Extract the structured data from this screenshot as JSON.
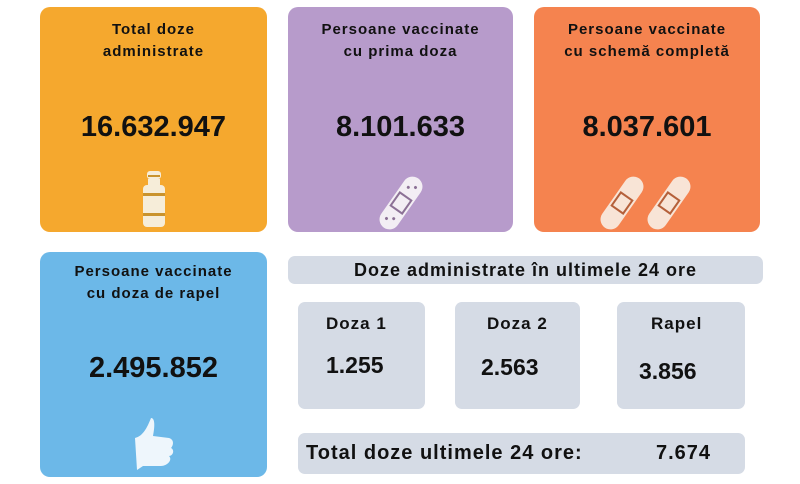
{
  "cards": [
    {
      "title_l1": "Total doze",
      "title_l2": "administrate",
      "value": "16.632.947",
      "icon": "vaccine-vial-icon",
      "color": "#F5A82E"
    },
    {
      "title_l1": "Persoane vaccinate",
      "title_l2": "cu prima doza",
      "value": "8.101.633",
      "icon": "bandage-icon",
      "color": "#B79BCB"
    },
    {
      "title_l1": "Persoane vaccinate",
      "title_l2": "cu schemă completă",
      "value": "8.037.601",
      "icon": "two-bandages-icon",
      "color": "#F5834F"
    },
    {
      "title_l1": "Persoane  vaccinate",
      "title_l2": "cu doza de rapel",
      "value": "2.495.852",
      "icon": "thumbs-up-icon",
      "color": "#6CB8E8"
    }
  ],
  "last24": {
    "header": "Doze administrate în ultimele 24 ore",
    "items": [
      {
        "label": "Doza 1",
        "value": "1.255"
      },
      {
        "label": "Doza 2",
        "value": "2.563"
      },
      {
        "label": "Rapel",
        "value": "3.856"
      }
    ],
    "total_label": "Total doze ultimele 24 ore:",
    "total_value": "7.674"
  }
}
